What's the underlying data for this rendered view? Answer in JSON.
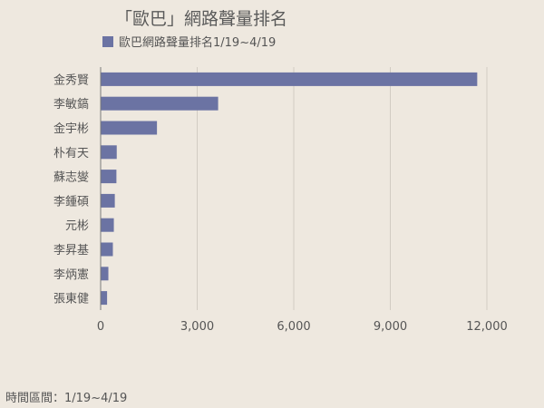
{
  "chart_data": {
    "type": "bar",
    "orientation": "horizontal",
    "title": "「歐巴」網路聲量排名",
    "legend": "歐巴網路聲量排名1/19~4/19",
    "legend_position": "top-left",
    "categories": [
      "金秀賢",
      "李敏鎬",
      "金宇彬",
      "朴有天",
      "蘇志燮",
      "李鍾碩",
      "元彬",
      "李昇基",
      "李炳憲",
      "張東健"
    ],
    "series": [
      {
        "name": "歐巴網路聲量排名1/19~4/19",
        "color": "#6b73a3",
        "values": [
          11700,
          3650,
          1750,
          500,
          490,
          440,
          410,
          380,
          240,
          200
        ]
      }
    ],
    "xlim": [
      0,
      12000
    ],
    "xticks": [
      0,
      3000,
      6000,
      9000,
      12000
    ],
    "xtick_labels": [
      "0",
      "3,000",
      "6,000",
      "9,000",
      "12,000"
    ],
    "grid": true
  },
  "footer_note": "時間區間：1/19~4/19"
}
